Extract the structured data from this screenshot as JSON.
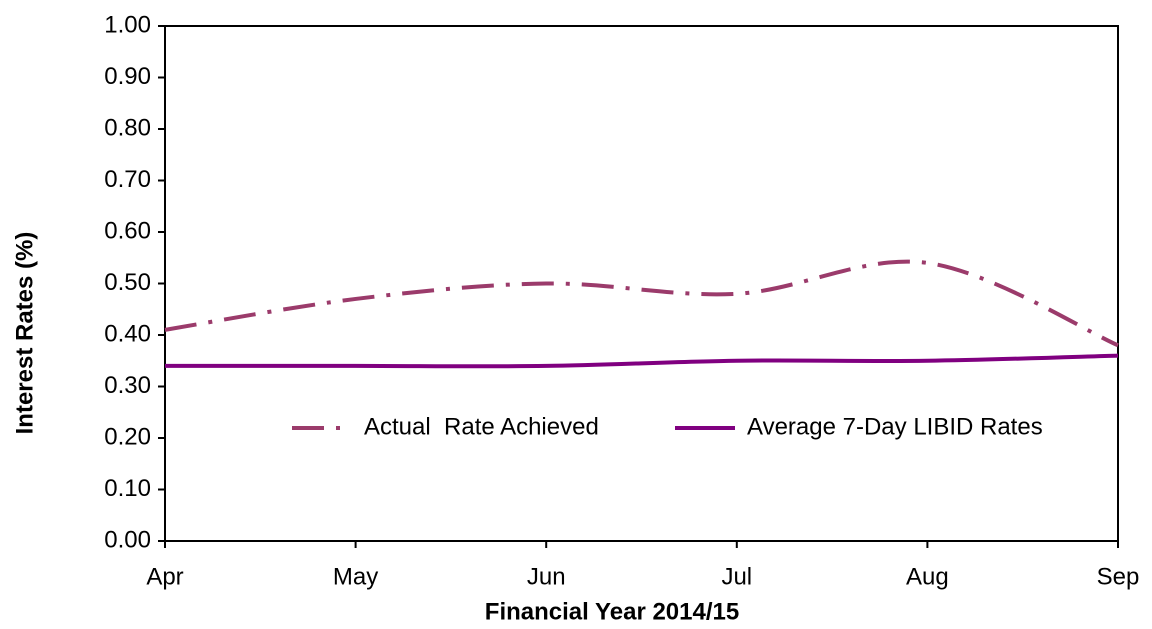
{
  "chart_data": {
    "type": "line",
    "x_label": "Financial Year 2014/15",
    "y_label": "Interest Rates (%)",
    "categories": [
      "Apr",
      "May",
      "Jun",
      "Jul",
      "Aug",
      "Sep"
    ],
    "series": [
      {
        "name": "Actual  Rate Achieved",
        "color": "#9b3b6b",
        "dash": "dash-dot",
        "values": [
          0.41,
          0.47,
          0.5,
          0.48,
          0.54,
          0.38
        ]
      },
      {
        "name": "Average 7-Day LIBID Rates",
        "color": "#800080",
        "dash": "solid",
        "values": [
          0.34,
          0.34,
          0.34,
          0.35,
          0.35,
          0.36
        ]
      }
    ],
    "ylim": [
      0,
      1
    ],
    "yticks": [
      {
        "value": 0,
        "label": "0.00"
      },
      {
        "value": 0.1,
        "label": "0.10"
      },
      {
        "value": 0.2,
        "label": "0.20"
      },
      {
        "value": 0.3,
        "label": "0.30"
      },
      {
        "value": 0.4,
        "label": "0.40"
      },
      {
        "value": 0.5,
        "label": "0.50"
      },
      {
        "value": 0.6,
        "label": "0.60"
      },
      {
        "value": 0.7,
        "label": "0.70"
      },
      {
        "value": 0.8,
        "label": "0.80"
      },
      {
        "value": 0.9,
        "label": "0.90"
      },
      {
        "value": 1,
        "label": "1.00"
      }
    ],
    "smooth": true,
    "legend": "center"
  }
}
